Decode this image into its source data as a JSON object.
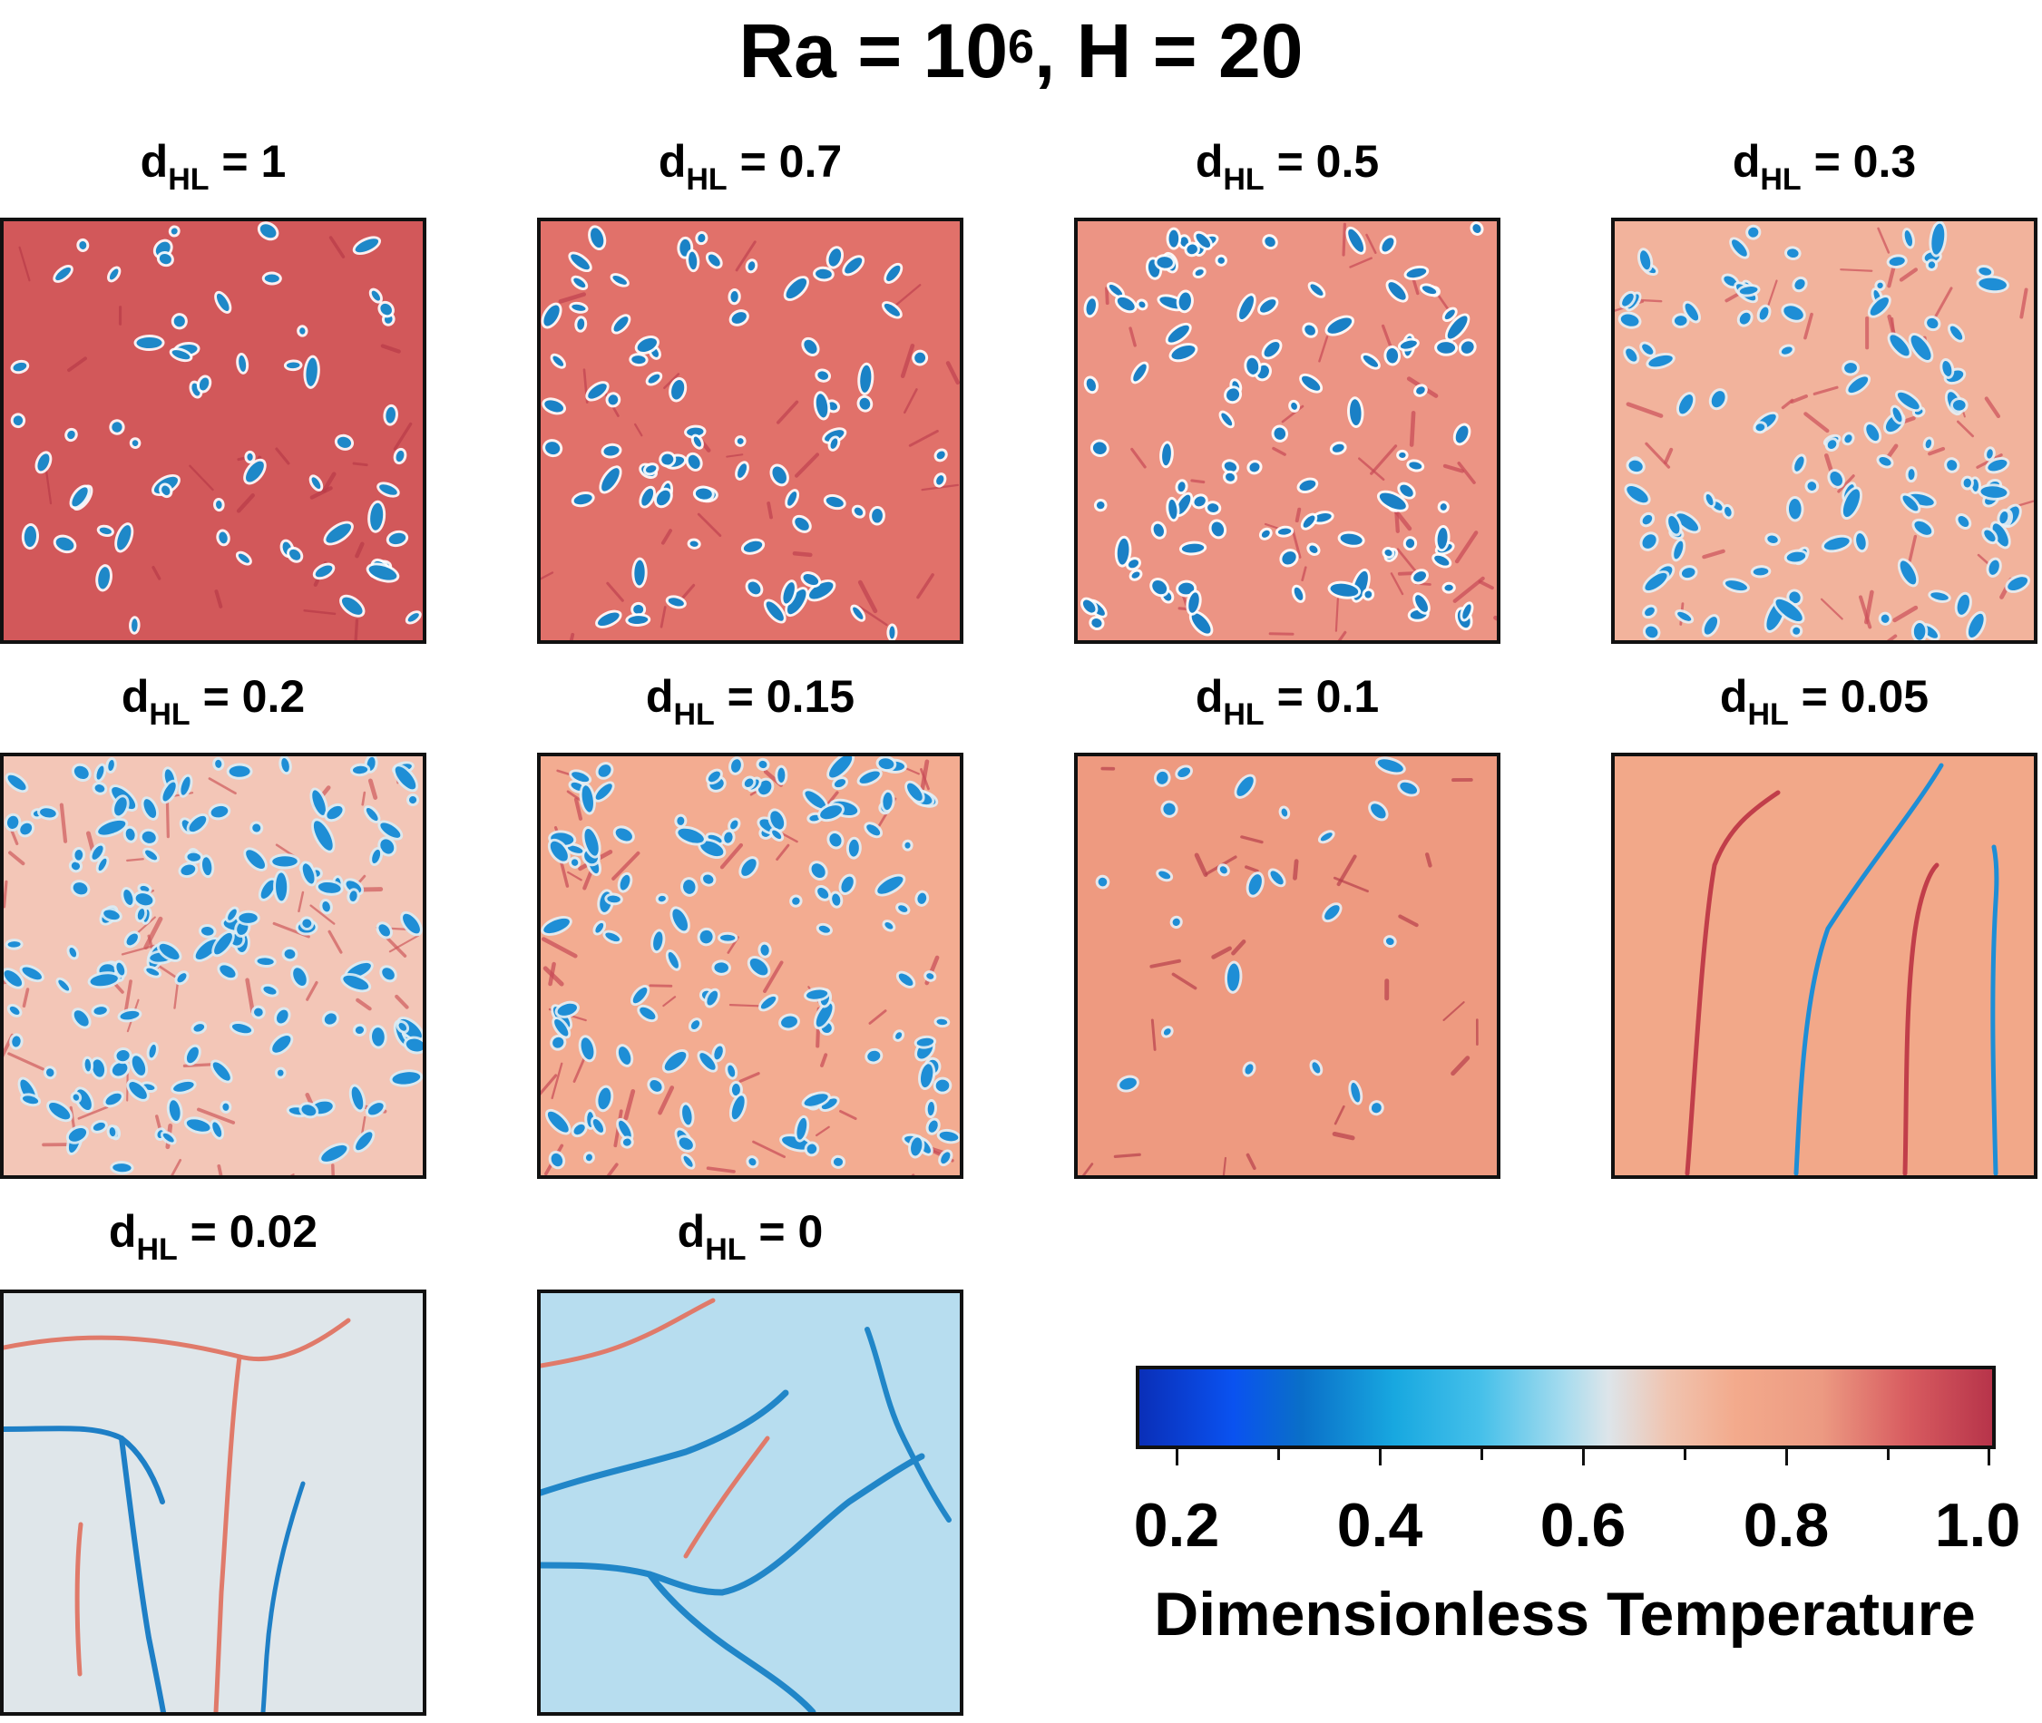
{
  "title": {
    "main": "Ra = 10",
    "exp": "6",
    "rest": ", H = 20"
  },
  "panel_prefix": "d",
  "panel_sub": "HL",
  "panels": [
    {
      "value": "1",
      "bg": "#d2585a",
      "blob": "#1e88c8",
      "halo": "#ffffff",
      "streak": "#b93b48",
      "count": 60,
      "seed": 11
    },
    {
      "value": "0.7",
      "bg": "#e1716a",
      "blob": "#1a82c6",
      "halo": "#ffffff",
      "streak": "#c04250",
      "count": 80,
      "seed": 23
    },
    {
      "value": "0.5",
      "bg": "#ec9484",
      "blob": "#1a80c6",
      "halo": "#ffffff",
      "streak": "#c84a56",
      "count": 110,
      "seed": 37
    },
    {
      "value": "0.3",
      "bg": "#f2b39c",
      "blob": "#1e8ed6",
      "halo": "#e6eef4",
      "streak": "#cc505a",
      "count": 120,
      "seed": 41
    },
    {
      "value": "0.2",
      "bg": "#f3c6b7",
      "blob": "#1e8ed6",
      "halo": "#d9ecf5",
      "streak": "#cf5a5c",
      "count": 160,
      "seed": 53
    },
    {
      "value": "0.15",
      "bg": "#f3ac91",
      "blob": "#1e8ed6",
      "halo": "#e2eef5",
      "streak": "#c84a56",
      "count": 140,
      "seed": 67
    },
    {
      "value": "0.1",
      "bg": "#ee9a80",
      "blob": "#1e8ed6",
      "halo": "#e6eef4",
      "streak": "#b9404c",
      "count": 24,
      "seed": 71
    },
    {
      "value": "0.05",
      "bg": "#f2a889",
      "blob": "#1e8ed6",
      "halo": "#e6eef4",
      "streak": "#c13e4a",
      "count": 0,
      "seed": 83
    },
    {
      "value": "0.02",
      "bg": "#dfe6ea",
      "blob": "#1e7fc6",
      "halo": "#dfe6ea",
      "streak": "#e07a6a",
      "count": 0,
      "seed": 97
    },
    {
      "value": "0",
      "bg": "#b7ddef",
      "blob": "#2186c8",
      "halo": "#b7ddef",
      "streak": "#e07a6a",
      "count": 0,
      "seed": 101
    }
  ],
  "colorbar": {
    "ticks": [
      "0.2",
      "0.4",
      "0.6",
      "0.8",
      "1.0"
    ],
    "label": "Dimensionless Temperature",
    "colors": [
      "#0a2fb8",
      "#0a52f0",
      "#18a8e0",
      "#dde5ea",
      "#f3aa8c",
      "#b7344a"
    ]
  }
}
